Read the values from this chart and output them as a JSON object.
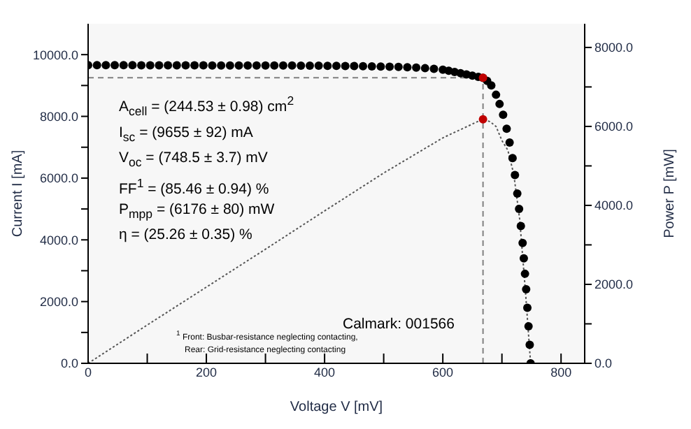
{
  "chart_data": {
    "type": "scatter",
    "xlabel": "Voltage V [mV]",
    "ylabel": "Current I [mA]",
    "y2label": "Power P [mW]",
    "xlim": [
      0,
      840
    ],
    "xticks": [
      0,
      {
        "value": 100,
        "label": null
      },
      200,
      {
        "value": 300,
        "label": null
      },
      400,
      {
        "value": 500,
        "label": null
      },
      600,
      {
        "value": 700,
        "label": null
      },
      800
    ],
    "ylim": [
      0,
      11000
    ],
    "yticks": [
      {
        "value": 0,
        "label": "0.0"
      },
      {
        "value": 1000,
        "label": null
      },
      {
        "value": 2000,
        "label": "2000.0"
      },
      {
        "value": 3000,
        "label": null
      },
      {
        "value": 4000,
        "label": "4000.0"
      },
      {
        "value": 5000,
        "label": null
      },
      {
        "value": 6000,
        "label": "6000.0"
      },
      {
        "value": 7000,
        "label": null
      },
      {
        "value": 8000,
        "label": "8000.0"
      },
      {
        "value": 9000,
        "label": null
      },
      {
        "value": 10000,
        "label": "10000.0"
      }
    ],
    "y2lim": [
      0,
      8600
    ],
    "y2ticks": [
      {
        "value": 0,
        "label": "0.0"
      },
      {
        "value": 1000,
        "label": null
      },
      {
        "value": 2000,
        "label": "2000.0"
      },
      {
        "value": 3000,
        "label": null
      },
      {
        "value": 4000,
        "label": "4000.0"
      },
      {
        "value": 5000,
        "label": null
      },
      {
        "value": 6000,
        "label": "6000.0"
      },
      {
        "value": 7000,
        "label": null
      },
      {
        "value": 8000,
        "label": "8000.0"
      }
    ],
    "series": [
      {
        "color": "#000000",
        "marker": "circle",
        "x": [
          0,
          15,
          30,
          45,
          60,
          75,
          90,
          105,
          120,
          135,
          150,
          165,
          180,
          195,
          210,
          225,
          240,
          255,
          270,
          285,
          300,
          315,
          330,
          345,
          360,
          375,
          390,
          405,
          420,
          435,
          450,
          465,
          480,
          495,
          510,
          525,
          540,
          555,
          570,
          585,
          600,
          610,
          620,
          630,
          640,
          650,
          660,
          668,
          675,
          682,
          690,
          696,
          702,
          708,
          713,
          718,
          722,
          726,
          729,
          732,
          735,
          737,
          739,
          741,
          743,
          745,
          747,
          748.5
        ],
        "values": [
          9660,
          9660,
          9660,
          9660,
          9660,
          9660,
          9655,
          9655,
          9655,
          9655,
          9655,
          9655,
          9655,
          9655,
          9650,
          9650,
          9650,
          9650,
          9650,
          9650,
          9650,
          9645,
          9645,
          9645,
          9640,
          9640,
          9640,
          9635,
          9635,
          9630,
          9630,
          9625,
          9620,
          9615,
          9610,
          9600,
          9590,
          9580,
          9560,
          9540,
          9510,
          9480,
          9440,
          9400,
          9360,
          9320,
          9280,
          9245,
          9150,
          9000,
          8700,
          8400,
          8050,
          7600,
          7150,
          6650,
          6100,
          5500,
          5000,
          4450,
          3900,
          3400,
          2900,
          2400,
          1800,
          1200,
          600,
          0
        ]
      },
      {
        "type": "line",
        "axis": "y2",
        "color": "#555555",
        "marker": "none",
        "line_style": "dotted",
        "x": [
          0,
          100,
          200,
          300,
          400,
          500,
          600,
          640,
          660,
          668,
          680,
          690,
          700,
          710,
          720,
          730,
          740,
          748.5
        ],
        "values": [
          0,
          970,
          1930,
          2890,
          3860,
          4820,
          5710,
          5990,
          6130,
          6180,
          6120,
          6000,
          5640,
          5400,
          4790,
          3650,
          1780,
          0
        ]
      },
      {
        "color": "#c00000",
        "marker": "circle",
        "x": [
          668
        ],
        "values": [
          9250
        ]
      },
      {
        "axis": "y2",
        "color": "#c00000",
        "marker": "circle",
        "x": [
          668
        ],
        "values": [
          6180
        ]
      }
    ],
    "ref_lines": [
      {
        "axis": "x",
        "value": 668,
        "color": "#808080",
        "line_style": "dashed"
      },
      {
        "axis": "y",
        "value": 9250,
        "color": "#808080",
        "line_style": "dashed"
      }
    ],
    "annotations": [
      "A$_{cell}$ = (244.53 ± 0.98) cm$^{2}$",
      "I$_{sc}$ = (9655 ± 92) mA",
      "V$_{oc}$ = (748.5 ± 3.7) mV",
      "FF$^{1}$ = (85.46 ± 0.94) %",
      "P$_{mpp}$ = (6176 ± 80) mW",
      "η = (25.26 ± 0.35) %",
      "Calmark: 001566",
      "$^{1}$ Front: Busbar-resistance neglecting contacting,",
      "Rear: Grid-resistance neglecting contacting"
    ],
    "grid": false
  }
}
